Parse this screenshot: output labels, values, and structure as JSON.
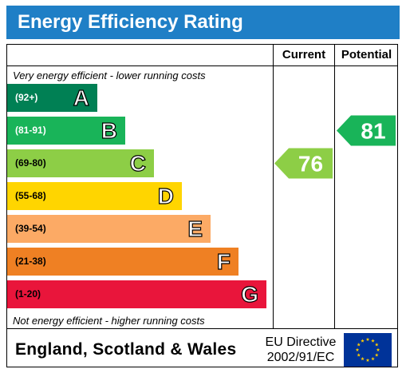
{
  "title": "Energy Efficiency Rating",
  "columns": {
    "current": "Current",
    "potential": "Potential"
  },
  "top_caption": "Very energy efficient - lower running costs",
  "bottom_caption": "Not energy efficient - higher running costs",
  "bands": [
    {
      "letter": "A",
      "range": "(92+)",
      "color": "#008054",
      "range_color": "#ffffff"
    },
    {
      "letter": "B",
      "range": "(81-91)",
      "color": "#19b459",
      "range_color": "#ffffff"
    },
    {
      "letter": "C",
      "range": "(69-80)",
      "color": "#8dce46",
      "range_color": "#000000"
    },
    {
      "letter": "D",
      "range": "(55-68)",
      "color": "#ffd500",
      "range_color": "#000000"
    },
    {
      "letter": "E",
      "range": "(39-54)",
      "color": "#fcaa65",
      "range_color": "#000000"
    },
    {
      "letter": "F",
      "range": "(21-38)",
      "color": "#ef8023",
      "range_color": "#000000"
    },
    {
      "letter": "G",
      "range": "(1-20)",
      "color": "#e9153b",
      "range_color": "#000000"
    }
  ],
  "ratings": {
    "current": {
      "value": "76",
      "band": "C",
      "color": "#8dce46"
    },
    "potential": {
      "value": "81",
      "band": "B",
      "color": "#19b459"
    }
  },
  "footer": {
    "region": "England, Scotland & Wales",
    "directive_line1": "EU Directive",
    "directive_line2": "2002/91/EC",
    "flag_icon": "eu-flag-icon"
  }
}
